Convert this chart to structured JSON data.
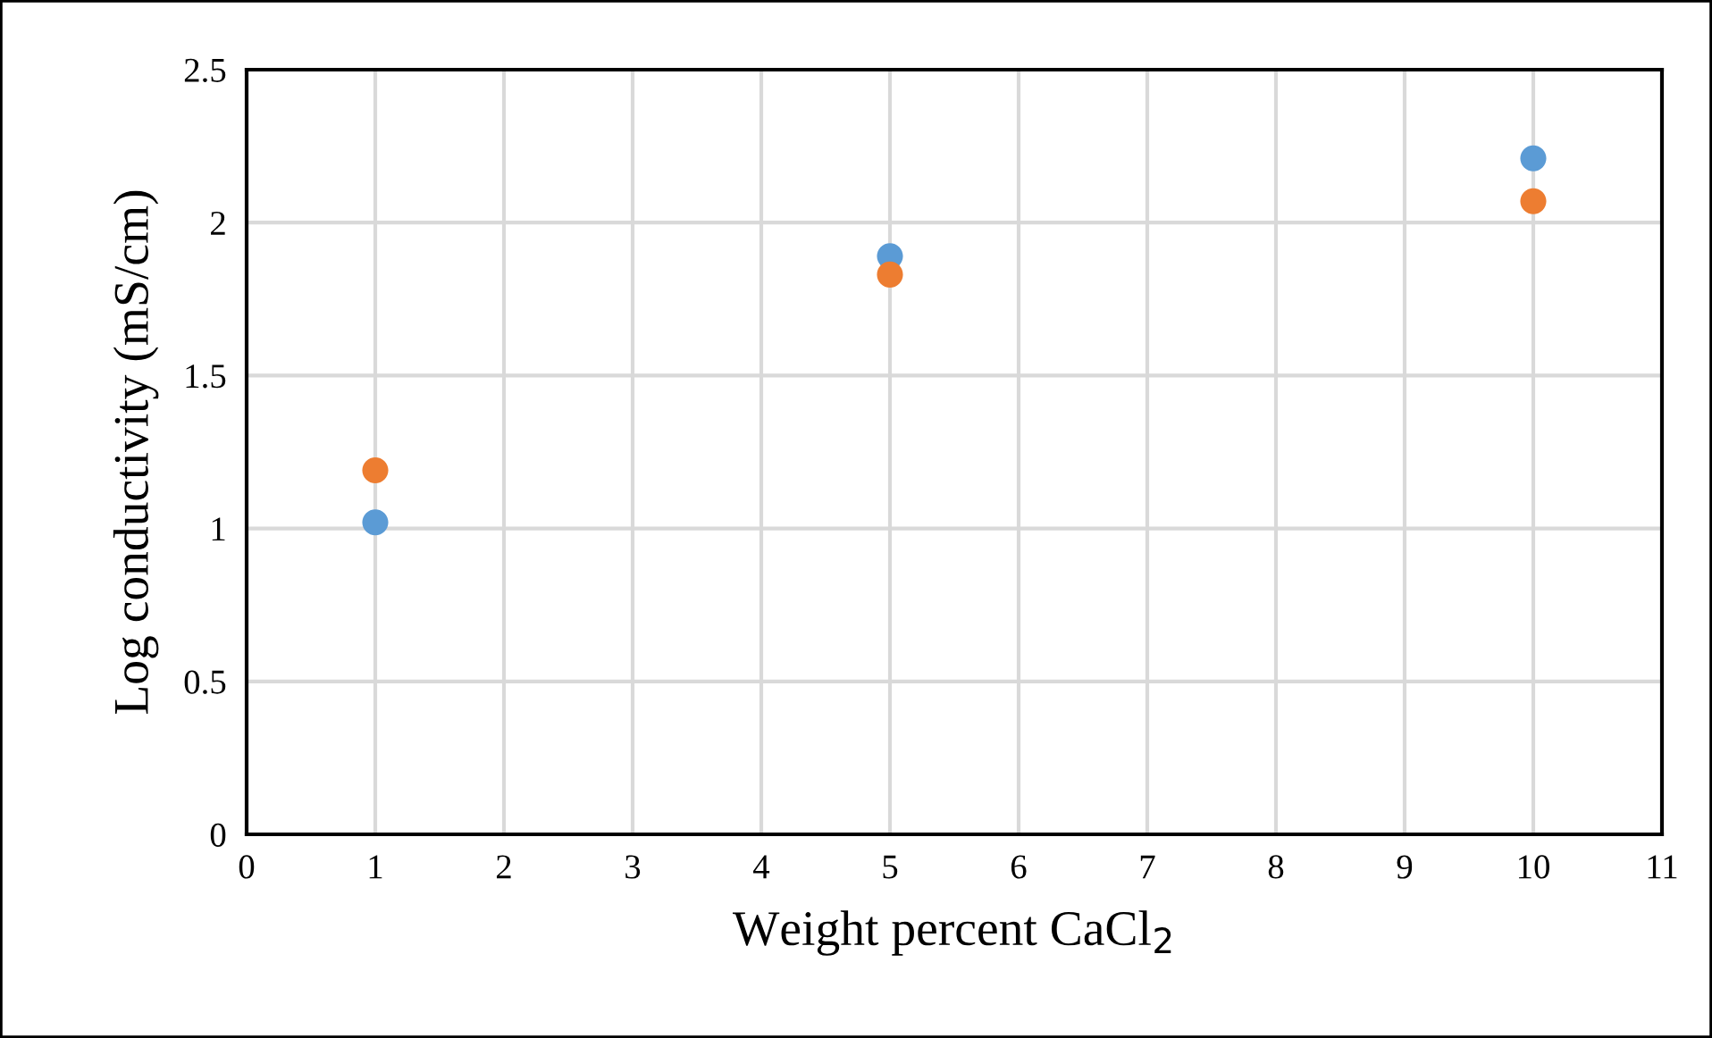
{
  "chart_data": {
    "type": "scatter",
    "xlabel": "Weight percent CaCl$_{2}$",
    "ylabel": "Log conductivity (mS/cm)",
    "x": [
      1,
      5,
      10
    ],
    "series": [
      {
        "color": "#5b9bd5",
        "values": [
          1.02,
          1.89,
          2.21
        ]
      },
      {
        "color": "#ed7d31",
        "values": [
          1.19,
          1.83,
          2.07
        ]
      }
    ],
    "xlim": [
      0,
      11
    ],
    "xticks": [
      0,
      1,
      2,
      3,
      4,
      5,
      6,
      7,
      8,
      9,
      10,
      11
    ],
    "ylim": [
      0,
      2.5
    ],
    "yticks": [
      0,
      0.5,
      1,
      1.5,
      2,
      2.5
    ],
    "grid": true,
    "marker": "circle"
  }
}
